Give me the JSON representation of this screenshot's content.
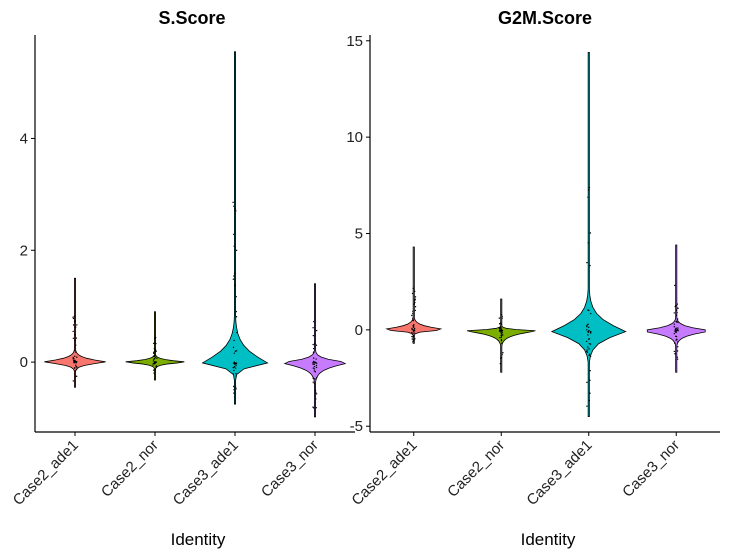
{
  "chart_data": [
    {
      "type": "violin",
      "title": "S.Score",
      "xlabel": "Identity",
      "ylabel": "",
      "ylim": [
        -1.25,
        5.85
      ],
      "yticks": [
        0,
        2,
        4
      ],
      "categories": [
        "Case2_ade1",
        "Case2_nor",
        "Case3_ade1",
        "Case3_nor"
      ],
      "colors": [
        "#f8766d",
        "#7cae00",
        "#00bfc4",
        "#c77cff"
      ],
      "grid": false,
      "legend": "none",
      "series": [
        {
          "category": "Case2_ade1",
          "min": -0.45,
          "max": 1.5,
          "median": 0.0,
          "density_width": 0.8
        },
        {
          "category": "Case2_nor",
          "min": -0.32,
          "max": 0.9,
          "median": 0.0,
          "density_width": 0.8
        },
        {
          "category": "Case3_ade1",
          "min": -0.75,
          "max": 5.55,
          "median": -0.02,
          "density_width": 0.82
        },
        {
          "category": "Case3_nor",
          "min": -0.98,
          "max": 1.4,
          "median": -0.01,
          "density_width": 0.85
        }
      ]
    },
    {
      "type": "violin",
      "title": "G2M.Score",
      "xlabel": "Identity",
      "ylabel": "",
      "ylim": [
        -5.3,
        15.3
      ],
      "yticks": [
        -5,
        0,
        5,
        10,
        15
      ],
      "categories": [
        "Case2_ade1",
        "Case2_nor",
        "Case3_ade1",
        "Case3_nor"
      ],
      "colors": [
        "#f8766d",
        "#7cae00",
        "#00bfc4",
        "#c77cff"
      ],
      "grid": false,
      "legend": "none",
      "series": [
        {
          "category": "Case2_ade1",
          "min": -0.7,
          "max": 4.3,
          "median": 0.0,
          "density_width": 0.75
        },
        {
          "category": "Case2_nor",
          "min": -2.2,
          "max": 1.6,
          "median": -0.05,
          "density_width": 0.8
        },
        {
          "category": "Case3_ade1",
          "min": -4.5,
          "max": 14.4,
          "median": -0.1,
          "density_width": 0.85
        },
        {
          "category": "Case3_nor",
          "min": -2.2,
          "max": 4.4,
          "median": -0.05,
          "density_width": 0.8
        }
      ]
    }
  ]
}
